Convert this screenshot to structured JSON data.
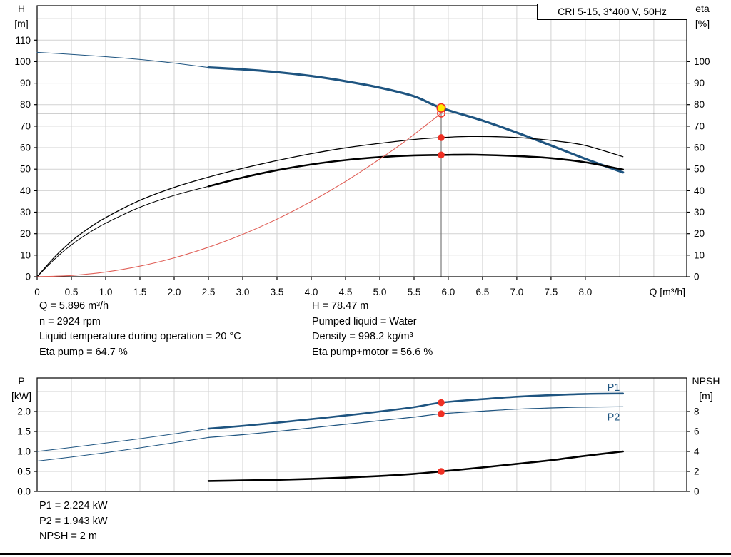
{
  "title_box": {
    "label": "CRI 5-15, 3*400 V, 50Hz"
  },
  "colors": {
    "blue": "#1e5480",
    "black": "#000000",
    "red": "#f03024",
    "red_curve": "#e06058",
    "yellow": "#ffec00",
    "grid": "#d2d2d2"
  },
  "info_top_left": [
    "Q = 5.896 m³/h",
    "n = 2924 rpm",
    "Liquid temperature during operation = 20 °C",
    "Eta pump = 64.7 %"
  ],
  "info_top_right": [
    "H = 78.47 m",
    "Pumped liquid = Water",
    "Density = 998.2 kg/m³",
    "Eta pump+motor = 56.6 %"
  ],
  "info_bottom": [
    "P1 = 2.224 kW",
    "P2 = 1.943 kW",
    "NPSH = 2 m"
  ],
  "chart_data": [
    {
      "id": "hq",
      "type": "line",
      "title": "CRI 5-15, 3*400 V, 50Hz",
      "x_label": "Q [m³/h]",
      "y_left_label": [
        "H",
        "[m]"
      ],
      "y_right_label": [
        "eta",
        "[%]"
      ],
      "x_range": [
        0,
        9.48
      ],
      "y_range": [
        0,
        126
      ],
      "x_ticks": [
        0,
        0.5,
        1,
        1.5,
        2,
        2.5,
        3,
        3.5,
        4,
        4.5,
        5,
        5.5,
        6,
        6.5,
        7,
        7.5,
        8
      ],
      "x_tick_format": {
        "decimals": 1,
        "zero_plain": true
      },
      "x_grid": [
        0.5,
        1,
        1.5,
        2,
        2.5,
        3,
        3.5,
        4,
        4.5,
        5,
        5.5,
        6,
        6.5,
        7,
        7.5,
        8,
        8.5,
        9
      ],
      "y_ticks": [
        0,
        10,
        20,
        30,
        40,
        50,
        60,
        70,
        80,
        90,
        100,
        110
      ],
      "y_tick_format": {
        "decimals": 0
      },
      "y_grid": [
        10,
        20,
        30,
        40,
        50,
        60,
        70,
        80,
        90,
        100,
        110,
        120
      ],
      "right_axis": {
        "factor": 1,
        "ticks": [
          0,
          10,
          20,
          30,
          40,
          50,
          60,
          70,
          80,
          90,
          100
        ],
        "format": {
          "decimals": 0
        }
      },
      "guides": {
        "h_y": 76.0,
        "v_x": 5.896,
        "v_top": 78.47
      },
      "series": [
        {
          "name": "pump-curve-extension",
          "color": "blue",
          "width": 1,
          "points": [
            [
              0,
              104.3
            ],
            [
              0.5,
              103.4
            ],
            [
              1,
              102.3
            ],
            [
              1.5,
              101
            ],
            [
              2,
              99.3
            ],
            [
              2.5,
              97.3
            ]
          ]
        },
        {
          "name": "pump-curve",
          "color": "blue",
          "width": 3.2,
          "points": [
            [
              2.5,
              97.3
            ],
            [
              3,
              96.4
            ],
            [
              3.5,
              95.1
            ],
            [
              4,
              93.3
            ],
            [
              4.5,
              90.9
            ],
            [
              5,
              87.9
            ],
            [
              5.5,
              83.9
            ],
            [
              5.896,
              78.47
            ],
            [
              6.5,
              72.6
            ],
            [
              7,
              67
            ],
            [
              7.5,
              61
            ],
            [
              8,
              54.8
            ],
            [
              8.55,
              48.5
            ]
          ]
        },
        {
          "name": "eta-pump-curve",
          "color": "black",
          "width": 1.3,
          "points": [
            [
              0,
              0
            ],
            [
              0.25,
              9
            ],
            [
              0.5,
              16.5
            ],
            [
              0.75,
              22.5
            ],
            [
              1,
              27.5
            ],
            [
              1.5,
              35.5
            ],
            [
              2,
              41.5
            ],
            [
              2.5,
              46.3
            ],
            [
              3,
              50.4
            ],
            [
              3.5,
              54
            ],
            [
              4,
              57.2
            ],
            [
              4.5,
              59.9
            ],
            [
              5,
              62
            ],
            [
              5.5,
              63.8
            ],
            [
              5.896,
              64.7
            ],
            [
              6.3,
              65.2
            ],
            [
              6.8,
              65
            ],
            [
              7.2,
              64.3
            ],
            [
              7.6,
              63
            ],
            [
              8,
              61
            ],
            [
              8.55,
              55.8
            ]
          ]
        },
        {
          "name": "eta-total-extension",
          "color": "black",
          "width": 1,
          "points": [
            [
              0,
              0
            ],
            [
              0.25,
              8
            ],
            [
              0.5,
              14.8
            ],
            [
              0.75,
              20.3
            ],
            [
              1,
              24.9
            ],
            [
              1.5,
              32.3
            ],
            [
              2,
              37.8
            ],
            [
              2.5,
              42
            ]
          ]
        },
        {
          "name": "eta-total-curve",
          "color": "black",
          "width": 2.6,
          "points": [
            [
              2.5,
              42
            ],
            [
              3,
              46.1
            ],
            [
              3.5,
              49.5
            ],
            [
              4,
              52.2
            ],
            [
              4.5,
              54.2
            ],
            [
              5,
              55.6
            ],
            [
              5.5,
              56.4
            ],
            [
              5.896,
              56.6
            ],
            [
              6.4,
              56.7
            ],
            [
              7,
              56.1
            ],
            [
              7.5,
              55.1
            ],
            [
              8,
              53.2
            ],
            [
              8.55,
              49.8
            ]
          ]
        },
        {
          "name": "system-curve",
          "color": "red_curve",
          "width": 1.1,
          "points": [
            [
              0,
              0
            ],
            [
              0.5,
              0.55
            ],
            [
              1,
              2.19
            ],
            [
              1.5,
              4.92
            ],
            [
              2,
              8.74
            ],
            [
              2.5,
              13.7
            ],
            [
              3,
              19.7
            ],
            [
              3.5,
              26.8
            ],
            [
              4,
              35
            ],
            [
              4.5,
              44.3
            ],
            [
              5,
              54.7
            ],
            [
              5.4,
              63.7
            ],
            [
              5.896,
              76
            ]
          ]
        }
      ],
      "markers": [
        {
          "x": 5.896,
          "y": 76.0,
          "style": "ring",
          "name": "requested-duty-ring"
        },
        {
          "x": 5.896,
          "y": 78.47,
          "style": "duty",
          "name": "duty-point-marker"
        },
        {
          "x": 5.896,
          "y": 64.7,
          "style": "dot",
          "name": "eta-pump-dot"
        },
        {
          "x": 5.896,
          "y": 56.6,
          "style": "dot",
          "name": "eta-total-dot"
        }
      ]
    },
    {
      "id": "power-npsh",
      "type": "line",
      "title": "",
      "x_label": "",
      "y_left_label": [
        "P",
        "[kW]"
      ],
      "y_right_label": [
        "NPSH",
        "[m]"
      ],
      "x_range": [
        0,
        9.48
      ],
      "y_range": [
        0,
        2.84
      ],
      "x_ticks": [],
      "x_grid": [
        0.5,
        1,
        1.5,
        2,
        2.5,
        3,
        3.5,
        4,
        4.5,
        5,
        5.5,
        6,
        6.5,
        7,
        7.5,
        8,
        8.5,
        9
      ],
      "y_ticks": [
        0,
        0.5,
        1,
        1.5,
        2
      ],
      "y_tick_format": {
        "decimals": 1
      },
      "y_grid": [
        0.5,
        1,
        1.5,
        2,
        2.5
      ],
      "right_axis": {
        "factor": 0.25,
        "ticks": [
          0,
          2,
          4,
          6,
          8
        ],
        "format": {
          "decimals": 0
        }
      },
      "series": [
        {
          "name": "p1-extension",
          "color": "blue",
          "width": 1,
          "points": [
            [
              0,
              1.0
            ],
            [
              0.5,
              1.1
            ],
            [
              1,
              1.21
            ],
            [
              1.5,
              1.32
            ],
            [
              2,
              1.44
            ],
            [
              2.5,
              1.57
            ]
          ]
        },
        {
          "name": "p2-extension",
          "color": "blue",
          "width": 1,
          "points": [
            [
              0,
              0.76
            ],
            [
              0.5,
              0.86
            ],
            [
              1,
              0.97
            ],
            [
              1.5,
              1.09
            ],
            [
              2,
              1.22
            ],
            [
              2.5,
              1.35
            ]
          ]
        },
        {
          "name": "p1-curve",
          "color": "blue",
          "width": 2.6,
          "points": [
            [
              2.5,
              1.57
            ],
            [
              3,
              1.64
            ],
            [
              3.5,
              1.72
            ],
            [
              4,
              1.81
            ],
            [
              4.5,
              1.9
            ],
            [
              5,
              2.0
            ],
            [
              5.5,
              2.11
            ],
            [
              5.896,
              2.224
            ],
            [
              6.5,
              2.31
            ],
            [
              7,
              2.37
            ],
            [
              7.5,
              2.41
            ],
            [
              8,
              2.44
            ],
            [
              8.55,
              2.45
            ]
          ]
        },
        {
          "name": "p2-curve",
          "color": "blue",
          "width": 1.2,
          "points": [
            [
              2.5,
              1.35
            ],
            [
              3,
              1.42
            ],
            [
              3.5,
              1.5
            ],
            [
              4,
              1.59
            ],
            [
              4.5,
              1.68
            ],
            [
              5,
              1.77
            ],
            [
              5.5,
              1.86
            ],
            [
              5.896,
              1.943
            ],
            [
              6.5,
              2.01
            ],
            [
              7,
              2.06
            ],
            [
              7.5,
              2.09
            ],
            [
              8,
              2.11
            ],
            [
              8.55,
              2.12
            ]
          ]
        },
        {
          "name": "npsh-curve",
          "color": "black",
          "width": 2.6,
          "points": [
            [
              2.5,
              0.26
            ],
            [
              3,
              0.275
            ],
            [
              3.5,
              0.29
            ],
            [
              4,
              0.315
            ],
            [
              4.5,
              0.345
            ],
            [
              5,
              0.385
            ],
            [
              5.5,
              0.44
            ],
            [
              5.896,
              0.5
            ],
            [
              6.5,
              0.6
            ],
            [
              7,
              0.69
            ],
            [
              7.5,
              0.78
            ],
            [
              8,
              0.89
            ],
            [
              8.55,
              1.0
            ]
          ]
        }
      ],
      "labels": [
        {
          "text": "P1",
          "x": 8.32,
          "y": 2.52,
          "color": "blue",
          "name": "p1-label"
        },
        {
          "text": "P2",
          "x": 8.32,
          "y": 1.78,
          "color": "blue",
          "name": "p2-label"
        }
      ],
      "markers": [
        {
          "x": 5.896,
          "y": 2.224,
          "style": "dot",
          "name": "p1-dot"
        },
        {
          "x": 5.896,
          "y": 1.943,
          "style": "dot",
          "name": "p2-dot"
        },
        {
          "x": 5.896,
          "y": 0.5,
          "style": "dot",
          "name": "npsh-dot"
        }
      ]
    }
  ]
}
